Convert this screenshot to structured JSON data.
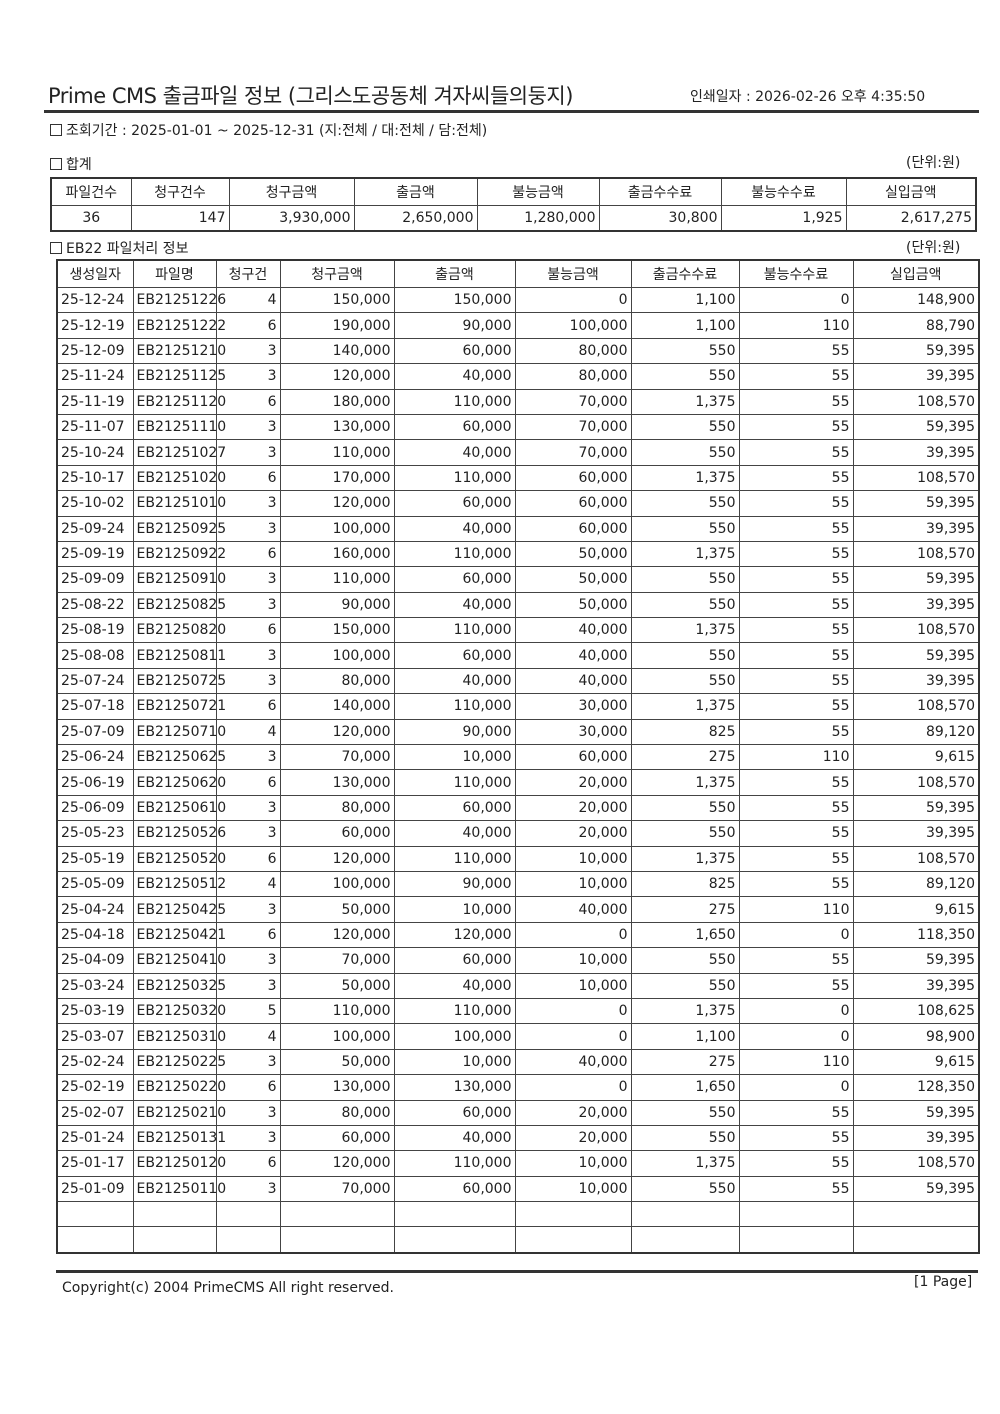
{
  "header": {
    "title": "Prime CMS 출금파일 정보 (그리스도공동체 겨자씨들의둥지)",
    "print_date": "인쇄일자 : 2026-02-26 오후 4:35:50"
  },
  "query_period": "조회기간 : 2025-01-01 ~ 2025-12-31 (지:전체 / 대:전체 / 담:전체)",
  "summary": {
    "section_title": "합계",
    "unit": "(단위:원)",
    "columns": [
      "파일건수",
      "청구건수",
      "청구금액",
      "출금액",
      "불능금액",
      "출금수수료",
      "불능수수료",
      "실입금액"
    ],
    "values": [
      "36",
      "147",
      "3,930,000",
      "2,650,000",
      "1,280,000",
      "30,800",
      "1,925",
      "2,617,275"
    ]
  },
  "files": {
    "section_title": "EB22 파일처리 정보",
    "unit": "(단위:원)",
    "columns": [
      "생성일자",
      "파일명",
      "청구건",
      "청구금액",
      "출금액",
      "불능금액",
      "출금수수료",
      "불능수수료",
      "실입금액"
    ],
    "rows": [
      [
        "25-12-24",
        "EB21251226",
        "4",
        "150,000",
        "150,000",
        "0",
        "1,100",
        "0",
        "148,900"
      ],
      [
        "25-12-19",
        "EB21251222",
        "6",
        "190,000",
        "90,000",
        "100,000",
        "1,100",
        "110",
        "88,790"
      ],
      [
        "25-12-09",
        "EB21251210",
        "3",
        "140,000",
        "60,000",
        "80,000",
        "550",
        "55",
        "59,395"
      ],
      [
        "25-11-24",
        "EB21251125",
        "3",
        "120,000",
        "40,000",
        "80,000",
        "550",
        "55",
        "39,395"
      ],
      [
        "25-11-19",
        "EB21251120",
        "6",
        "180,000",
        "110,000",
        "70,000",
        "1,375",
        "55",
        "108,570"
      ],
      [
        "25-11-07",
        "EB21251110",
        "3",
        "130,000",
        "60,000",
        "70,000",
        "550",
        "55",
        "59,395"
      ],
      [
        "25-10-24",
        "EB21251027",
        "3",
        "110,000",
        "40,000",
        "70,000",
        "550",
        "55",
        "39,395"
      ],
      [
        "25-10-17",
        "EB21251020",
        "6",
        "170,000",
        "110,000",
        "60,000",
        "1,375",
        "55",
        "108,570"
      ],
      [
        "25-10-02",
        "EB21251010",
        "3",
        "120,000",
        "60,000",
        "60,000",
        "550",
        "55",
        "59,395"
      ],
      [
        "25-09-24",
        "EB21250925",
        "3",
        "100,000",
        "40,000",
        "60,000",
        "550",
        "55",
        "39,395"
      ],
      [
        "25-09-19",
        "EB21250922",
        "6",
        "160,000",
        "110,000",
        "50,000",
        "1,375",
        "55",
        "108,570"
      ],
      [
        "25-09-09",
        "EB21250910",
        "3",
        "110,000",
        "60,000",
        "50,000",
        "550",
        "55",
        "59,395"
      ],
      [
        "25-08-22",
        "EB21250825",
        "3",
        "90,000",
        "40,000",
        "50,000",
        "550",
        "55",
        "39,395"
      ],
      [
        "25-08-19",
        "EB21250820",
        "6",
        "150,000",
        "110,000",
        "40,000",
        "1,375",
        "55",
        "108,570"
      ],
      [
        "25-08-08",
        "EB21250811",
        "3",
        "100,000",
        "60,000",
        "40,000",
        "550",
        "55",
        "59,395"
      ],
      [
        "25-07-24",
        "EB21250725",
        "3",
        "80,000",
        "40,000",
        "40,000",
        "550",
        "55",
        "39,395"
      ],
      [
        "25-07-18",
        "EB21250721",
        "6",
        "140,000",
        "110,000",
        "30,000",
        "1,375",
        "55",
        "108,570"
      ],
      [
        "25-07-09",
        "EB21250710",
        "4",
        "120,000",
        "90,000",
        "30,000",
        "825",
        "55",
        "89,120"
      ],
      [
        "25-06-24",
        "EB21250625",
        "3",
        "70,000",
        "10,000",
        "60,000",
        "275",
        "110",
        "9,615"
      ],
      [
        "25-06-19",
        "EB21250620",
        "6",
        "130,000",
        "110,000",
        "20,000",
        "1,375",
        "55",
        "108,570"
      ],
      [
        "25-06-09",
        "EB21250610",
        "3",
        "80,000",
        "60,000",
        "20,000",
        "550",
        "55",
        "59,395"
      ],
      [
        "25-05-23",
        "EB21250526",
        "3",
        "60,000",
        "40,000",
        "20,000",
        "550",
        "55",
        "39,395"
      ],
      [
        "25-05-19",
        "EB21250520",
        "6",
        "120,000",
        "110,000",
        "10,000",
        "1,375",
        "55",
        "108,570"
      ],
      [
        "25-05-09",
        "EB21250512",
        "4",
        "100,000",
        "90,000",
        "10,000",
        "825",
        "55",
        "89,120"
      ],
      [
        "25-04-24",
        "EB21250425",
        "3",
        "50,000",
        "10,000",
        "40,000",
        "275",
        "110",
        "9,615"
      ],
      [
        "25-04-18",
        "EB21250421",
        "6",
        "120,000",
        "120,000",
        "0",
        "1,650",
        "0",
        "118,350"
      ],
      [
        "25-04-09",
        "EB21250410",
        "3",
        "70,000",
        "60,000",
        "10,000",
        "550",
        "55",
        "59,395"
      ],
      [
        "25-03-24",
        "EB21250325",
        "3",
        "50,000",
        "40,000",
        "10,000",
        "550",
        "55",
        "39,395"
      ],
      [
        "25-03-19",
        "EB21250320",
        "5",
        "110,000",
        "110,000",
        "0",
        "1,375",
        "0",
        "108,625"
      ],
      [
        "25-03-07",
        "EB21250310",
        "4",
        "100,000",
        "100,000",
        "0",
        "1,100",
        "0",
        "98,900"
      ],
      [
        "25-02-24",
        "EB21250225",
        "3",
        "50,000",
        "10,000",
        "40,000",
        "275",
        "110",
        "9,615"
      ],
      [
        "25-02-19",
        "EB21250220",
        "6",
        "130,000",
        "130,000",
        "0",
        "1,650",
        "0",
        "128,350"
      ],
      [
        "25-02-07",
        "EB21250210",
        "3",
        "80,000",
        "60,000",
        "20,000",
        "550",
        "55",
        "59,395"
      ],
      [
        "25-01-24",
        "EB21250131",
        "3",
        "60,000",
        "40,000",
        "20,000",
        "550",
        "55",
        "39,395"
      ],
      [
        "25-01-17",
        "EB21250120",
        "6",
        "120,000",
        "110,000",
        "10,000",
        "1,375",
        "55",
        "108,570"
      ],
      [
        "25-01-09",
        "EB21250110",
        "3",
        "70,000",
        "60,000",
        "10,000",
        "550",
        "55",
        "59,395"
      ]
    ]
  },
  "footer": {
    "copyright": "Copyright(c) 2004 PrimeCMS All right reserved.",
    "page": "[1 Page]"
  }
}
